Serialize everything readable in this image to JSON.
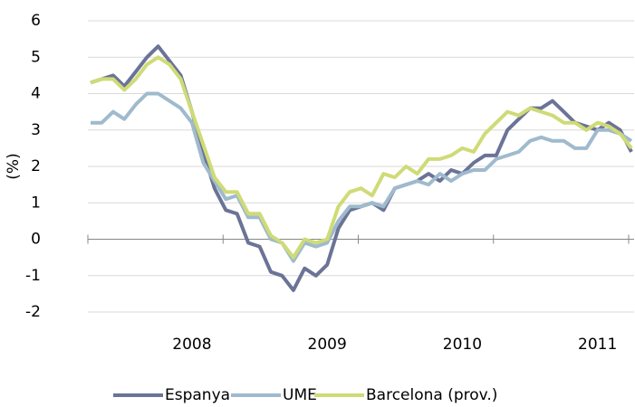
{
  "chart_data": {
    "type": "line",
    "y_label": "(%)",
    "categories": [
      null,
      null,
      null,
      null,
      null,
      null,
      null,
      null,
      null,
      "2008",
      null,
      null,
      null,
      null,
      null,
      null,
      null,
      null,
      null,
      null,
      null,
      "2009",
      null,
      null,
      null,
      null,
      null,
      null,
      null,
      null,
      null,
      null,
      null,
      "2010",
      null,
      null,
      null,
      null,
      null,
      null,
      null,
      null,
      null,
      null,
      null,
      "2011",
      null,
      null,
      null
    ],
    "series": [
      {
        "name": "Espanya",
        "color": "#6b7397",
        "values": [
          4.3,
          4.4,
          4.5,
          4.2,
          4.6,
          5.0,
          5.3,
          4.9,
          4.5,
          3.5,
          2.4,
          1.4,
          0.8,
          0.7,
          -0.1,
          -0.2,
          -0.9,
          -1.0,
          -1.4,
          -0.8,
          -1.0,
          -0.7,
          0.3,
          0.8,
          0.9,
          1.0,
          0.8,
          1.4,
          1.5,
          1.6,
          1.8,
          1.6,
          1.9,
          1.8,
          2.1,
          2.3,
          2.3,
          3.0,
          3.3,
          3.6,
          3.6,
          3.8,
          3.5,
          3.2,
          3.1,
          3.0,
          3.2,
          3.0,
          2.4
        ]
      },
      {
        "name": "UME",
        "color": "#a0bacd",
        "values": [
          3.2,
          3.2,
          3.5,
          3.3,
          3.7,
          4.0,
          4.0,
          3.8,
          3.6,
          3.2,
          2.1,
          1.6,
          1.1,
          1.2,
          0.6,
          0.6,
          0.0,
          -0.1,
          -0.6,
          -0.1,
          -0.2,
          -0.1,
          0.5,
          0.9,
          0.9,
          1.0,
          0.9,
          1.4,
          1.5,
          1.6,
          1.5,
          1.8,
          1.6,
          1.8,
          1.9,
          1.9,
          2.2,
          2.3,
          2.4,
          2.7,
          2.8,
          2.7,
          2.7,
          2.5,
          2.5,
          3.0,
          3.0,
          2.9,
          2.7
        ]
      },
      {
        "name": "Barcelona (prov.)",
        "color": "#cfdb76",
        "values": [
          4.3,
          4.4,
          4.4,
          4.1,
          4.4,
          4.8,
          5.0,
          4.8,
          4.4,
          3.5,
          2.6,
          1.7,
          1.3,
          1.3,
          0.7,
          0.7,
          0.1,
          -0.1,
          -0.5,
          0.0,
          -0.1,
          0.0,
          0.9,
          1.3,
          1.4,
          1.2,
          1.8,
          1.7,
          2.0,
          1.8,
          2.2,
          2.2,
          2.3,
          2.5,
          2.4,
          2.9,
          3.2,
          3.5,
          3.4,
          3.6,
          3.5,
          3.4,
          3.2,
          3.2,
          3.0,
          3.2,
          3.1,
          2.9,
          2.5
        ]
      }
    ],
    "ylim": [
      -2,
      6
    ],
    "yticks": [
      -2,
      -1,
      0,
      1,
      2,
      3,
      4,
      5,
      6
    ],
    "grid": true,
    "legend": "bottom"
  }
}
